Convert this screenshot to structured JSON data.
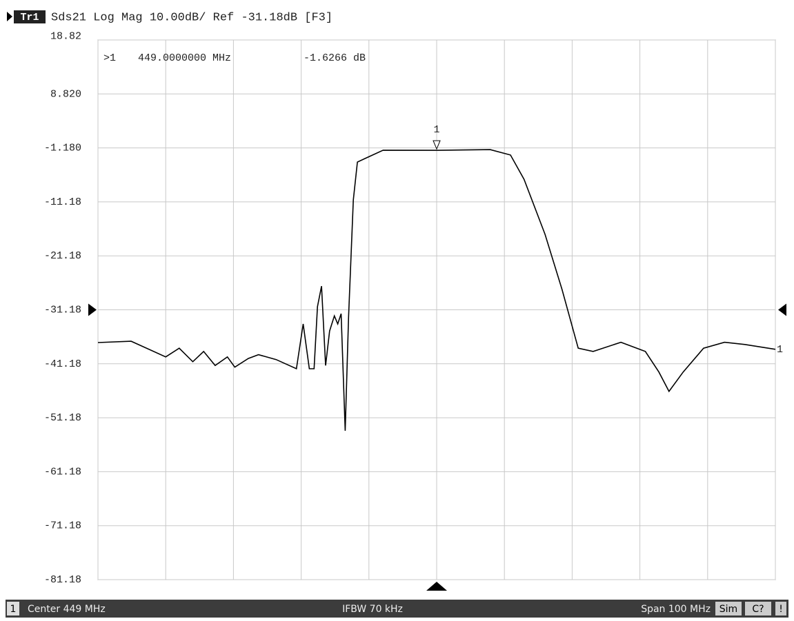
{
  "chart_data": {
    "type": "line",
    "trace_tag": "Tr1",
    "title": "Sds21 Log Mag 10.00dB/ Ref -31.18dB [F3]",
    "marker_readout": {
      "id": ">1",
      "freq": "449.0000000 MHz",
      "value": "-1.6266 dB"
    },
    "marker": {
      "label": "1",
      "x": 449,
      "value": -1.6266
    },
    "ref": -31.18,
    "center": 449,
    "trace_label": "1",
    "xlim": [
      399,
      499
    ],
    "xticks": [
      399,
      409,
      419,
      429,
      439,
      449,
      459,
      469,
      479,
      489,
      499
    ],
    "ylim": [
      -81.18,
      18.82
    ],
    "yticks": [
      18.82,
      {
        "value": 8.82,
        "label": "8.820"
      },
      {
        "value": -1.18,
        "label": "-1.180"
      },
      -11.18,
      -21.18,
      -31.18,
      -41.18,
      -51.18,
      -61.18,
      -71.18,
      -81.18
    ],
    "grid": true,
    "series": [
      {
        "color": "#000000",
        "x": [
          399,
          403.9,
          409,
          411,
          413,
          414.6,
          416.3,
          418.1,
          419.2,
          421.2,
          422.7,
          425.3,
          428.3,
          429.3,
          430.2,
          430.9,
          431.4,
          432.0,
          432.6,
          433.2,
          433.9,
          434.4,
          434.9,
          435.5,
          436.0,
          436.7,
          437.3,
          438.5,
          441.1,
          449,
          456.9,
          459.9,
          461.9,
          465,
          467.5,
          469.9,
          472.1,
          476.2,
          479.8,
          481.8,
          483.3,
          485.4,
          488.4,
          491.5,
          494.5,
          499
        ],
        "values": [
          -37.25,
          -37.0,
          -39.9,
          -38.3,
          -40.8,
          -38.9,
          -41.5,
          -39.9,
          -41.8,
          -40.2,
          -39.5,
          -40.4,
          -42.1,
          -33.8,
          -42.1,
          -42.1,
          -30.6,
          -26.8,
          -41.5,
          -35.1,
          -32.3,
          -33.8,
          -31.9,
          -53.6,
          -32.5,
          -10.8,
          -3.8,
          -3.1,
          -1.6,
          -1.6266,
          -1.5,
          -2.5,
          -7.0,
          -17.2,
          -27.4,
          -38.3,
          -38.9,
          -37.2,
          -38.9,
          -42.7,
          -46.3,
          -42.7,
          -38.3,
          -37.2,
          -37.6,
          -38.5
        ]
      }
    ],
    "footer": {
      "channel": "1",
      "center": "Center 449 MHz",
      "ifbw": "IFBW 70 kHz",
      "span": "Span 100 MHz",
      "sim": "Sim",
      "cal": "C?",
      "warn": "!"
    }
  }
}
